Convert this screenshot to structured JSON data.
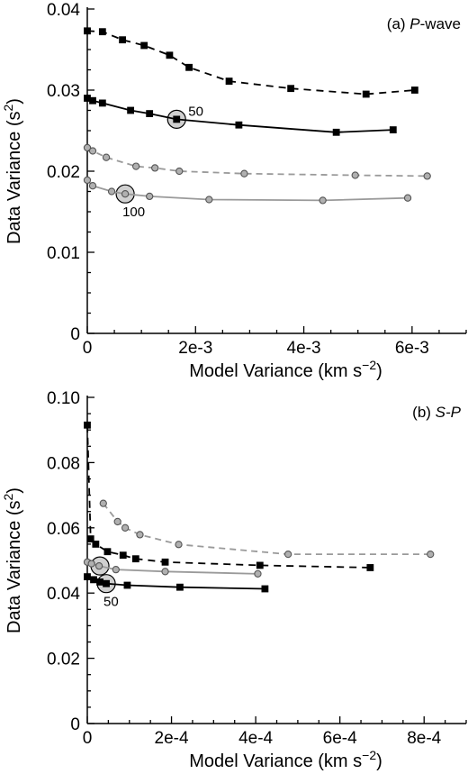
{
  "chart_data": [
    {
      "type": "line",
      "panel_label": "(a) ",
      "panel_label_italic": "P",
      "panel_label_rest": "-wave",
      "xlabel": "Model Variance (km s",
      "xlabel_sup": "−2",
      "xlabel_end": ")",
      "ylabel": "Data Variance (s",
      "ylabel_sup": "2",
      "ylabel_end": ")",
      "xlim": [
        0,
        0.007
      ],
      "ylim": [
        0,
        0.04
      ],
      "xticks": [
        0,
        0.002,
        0.004,
        0.006
      ],
      "xtick_labels": [
        "0",
        "2e-3",
        "4e-3",
        "6e-3"
      ],
      "yticks": [
        0,
        0.01,
        0.02,
        0.03,
        0.04
      ],
      "ytick_labels": [
        "0",
        "0.01",
        "0.02",
        "0.03",
        "0.04"
      ],
      "series": [
        {
          "style": "black-dashed-square",
          "x": [
            0.0,
            0.00028,
            0.00065,
            0.00105,
            0.00152,
            0.00188,
            0.00262,
            0.00376,
            0.00515,
            0.00605
          ],
          "y": [
            0.0373,
            0.0372,
            0.0362,
            0.0355,
            0.0343,
            0.0328,
            0.0311,
            0.0302,
            0.0295,
            0.03
          ]
        },
        {
          "style": "black-solid-square",
          "x": [
            0.0,
            0.0001,
            0.00028,
            0.0008,
            0.00115,
            0.00165,
            0.0028,
            0.0046,
            0.00565
          ],
          "y": [
            0.029,
            0.0287,
            0.0284,
            0.0275,
            0.0271,
            0.0264,
            0.0257,
            0.0248,
            0.0251
          ]
        },
        {
          "style": "gray-dashed-circle",
          "x": [
            0.0,
            0.0001,
            0.00035,
            0.0009,
            0.00125,
            0.0017,
            0.0029,
            0.00495,
            0.00628
          ],
          "y": [
            0.0229,
            0.0225,
            0.0217,
            0.0206,
            0.0204,
            0.02,
            0.0197,
            0.0195,
            0.0194
          ]
        },
        {
          "style": "gray-solid-circle",
          "x": [
            0.0,
            0.0001,
            0.00045,
            0.0007,
            0.00115,
            0.00225,
            0.00435,
            0.00592
          ],
          "y": [
            0.0189,
            0.0182,
            0.0175,
            0.0172,
            0.0169,
            0.0165,
            0.0164,
            0.0167
          ]
        }
      ],
      "highlights": [
        {
          "x": 0.00165,
          "y": 0.0264,
          "label": "50",
          "label_pos": "right"
        },
        {
          "x": 0.0007,
          "y": 0.0172,
          "label": "100",
          "label_pos": "below"
        }
      ]
    },
    {
      "type": "line",
      "panel_label": "(b) ",
      "panel_label_italic": "S-P",
      "panel_label_rest": "",
      "xlabel": "Model Variance (km s",
      "xlabel_sup": "−2",
      "xlabel_end": ")",
      "ylabel": "Data Variance (s",
      "ylabel_sup": "2",
      "ylabel_end": ")",
      "xlim": [
        0,
        0.0009
      ],
      "ylim": [
        0,
        0.1
      ],
      "xticks": [
        0,
        0.0002,
        0.0004,
        0.0006,
        0.0008
      ],
      "xtick_labels": [
        "0",
        "2e-4",
        "4e-4",
        "6e-4",
        "8e-4"
      ],
      "yticks": [
        0,
        0.02,
        0.04,
        0.06,
        0.08,
        0.1
      ],
      "ytick_labels": [
        "0",
        "0.02",
        "0.04",
        "0.06",
        "0.08",
        "0.10"
      ],
      "series": [
        {
          "style": "gray-dashed-circle",
          "x": [
            3.8e-05,
            7.2e-05,
            9e-05,
            0.000125,
            0.000217,
            0.000477,
            0.000815
          ],
          "y": [
            0.0675,
            0.0619,
            0.06,
            0.0579,
            0.0549,
            0.0519,
            0.0519
          ]
        },
        {
          "style": "black-dashed-square",
          "x": [
            0.0,
            8e-06,
            2e-05,
            4.8e-05,
            8.5e-05,
            0.000115,
            0.000185,
            0.00041,
            0.000672
          ],
          "y": [
            0.0915,
            0.0566,
            0.055,
            0.0527,
            0.0516,
            0.0505,
            0.0495,
            0.0485,
            0.0478
          ]
        },
        {
          "style": "gray-solid-circle",
          "x": [
            0.0,
            1e-05,
            2.8e-05,
            6.8e-05,
            0.000185,
            0.000405
          ],
          "y": [
            0.0495,
            0.049,
            0.0483,
            0.0472,
            0.0466,
            0.0459
          ]
        },
        {
          "style": "black-solid-square",
          "x": [
            0.0,
            1.5e-05,
            3e-05,
            4.5e-05,
            9.5e-05,
            0.00022,
            0.000422
          ],
          "y": [
            0.045,
            0.0441,
            0.0434,
            0.0429,
            0.0424,
            0.0418,
            0.0413
          ]
        }
      ],
      "highlights": [
        {
          "x": 3e-05,
          "y": 0.0483,
          "label": "",
          "label_pos": "none"
        },
        {
          "x": 4.5e-05,
          "y": 0.0429,
          "label": "50",
          "label_pos": "below-right"
        }
      ]
    }
  ]
}
